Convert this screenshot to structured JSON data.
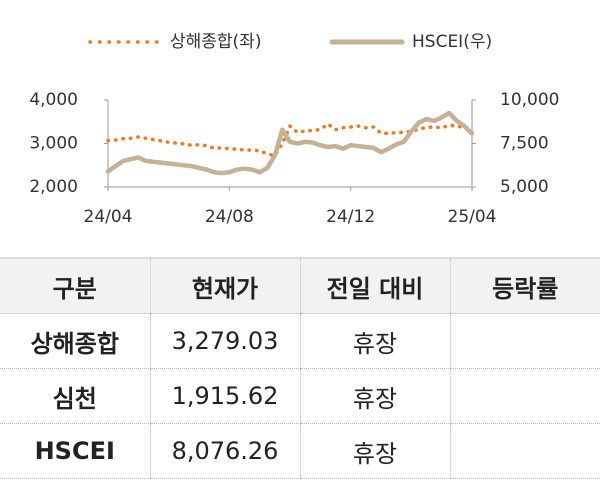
{
  "chart_data": {
    "type": "line",
    "categories": [
      "24/04",
      null,
      null,
      null,
      null,
      null,
      null,
      null,
      null,
      null,
      null,
      null,
      null,
      null,
      null,
      null,
      "24/08",
      null,
      null,
      null,
      null,
      null,
      null,
      null,
      null,
      null,
      null,
      null,
      null,
      null,
      null,
      null,
      "24/12",
      null,
      null,
      null,
      null,
      null,
      null,
      null,
      null,
      null,
      null,
      null,
      null,
      null,
      null,
      null,
      "25/04"
    ],
    "series": [
      {
        "name": "상해종합(좌)",
        "color": "#e87c2a",
        "style": "dotted",
        "axis": "y",
        "values": [
          3070,
          3080,
          3110,
          3120,
          3150,
          3120,
          3090,
          3060,
          3030,
          3010,
          2990,
          2960,
          2970,
          2950,
          2890,
          2900,
          2880,
          2870,
          2850,
          2850,
          2830,
          2760,
          2720,
          3000,
          3400,
          3250,
          3290,
          3300,
          3320,
          3450,
          3320,
          3360,
          3380,
          3400,
          3360,
          3380,
          3240,
          3230,
          3250,
          3260,
          3280,
          3330,
          3370,
          3380,
          3360,
          3420,
          3400,
          3370,
          3279
        ]
      },
      {
        "name": "HSCEI(우)",
        "color": "#c4b196",
        "style": "solid",
        "axis": "y2",
        "values": [
          5900,
          6200,
          6500,
          6600,
          6700,
          6500,
          6450,
          6400,
          6350,
          6300,
          6250,
          6200,
          6100,
          6000,
          5850,
          5800,
          5850,
          6000,
          6050,
          6000,
          5850,
          6100,
          6800,
          8300,
          7600,
          7500,
          7600,
          7550,
          7400,
          7300,
          7350,
          7200,
          7400,
          7350,
          7300,
          7250,
          7000,
          7200,
          7450,
          7600,
          8200,
          8700,
          8900,
          8800,
          9000,
          9250,
          8800,
          8500,
          8076
        ]
      }
    ],
    "ylim": [
      2000,
      4000
    ],
    "yticks": [
      {
        "value": 2000,
        "label": "2,000"
      },
      {
        "value": 3000,
        "label": "3,000"
      },
      {
        "value": 4000,
        "label": "4,000"
      }
    ],
    "y2lim": [
      5000,
      10000
    ],
    "y2ticks": [
      {
        "value": 5000,
        "label": "5,000"
      },
      {
        "value": 7500,
        "label": "7,500"
      },
      {
        "value": 10000,
        "label": "10,000"
      }
    ],
    "legend": "top"
  },
  "table": {
    "header": [
      "구분",
      "현재가",
      "전일 대비",
      "등락률"
    ],
    "rows": [
      [
        "상해종합",
        "3,279.03",
        "휴장"
      ],
      [
        "심천",
        "1,915.62",
        "휴장"
      ],
      [
        "HSCEI",
        "8,076.26",
        "휴장"
      ]
    ]
  }
}
